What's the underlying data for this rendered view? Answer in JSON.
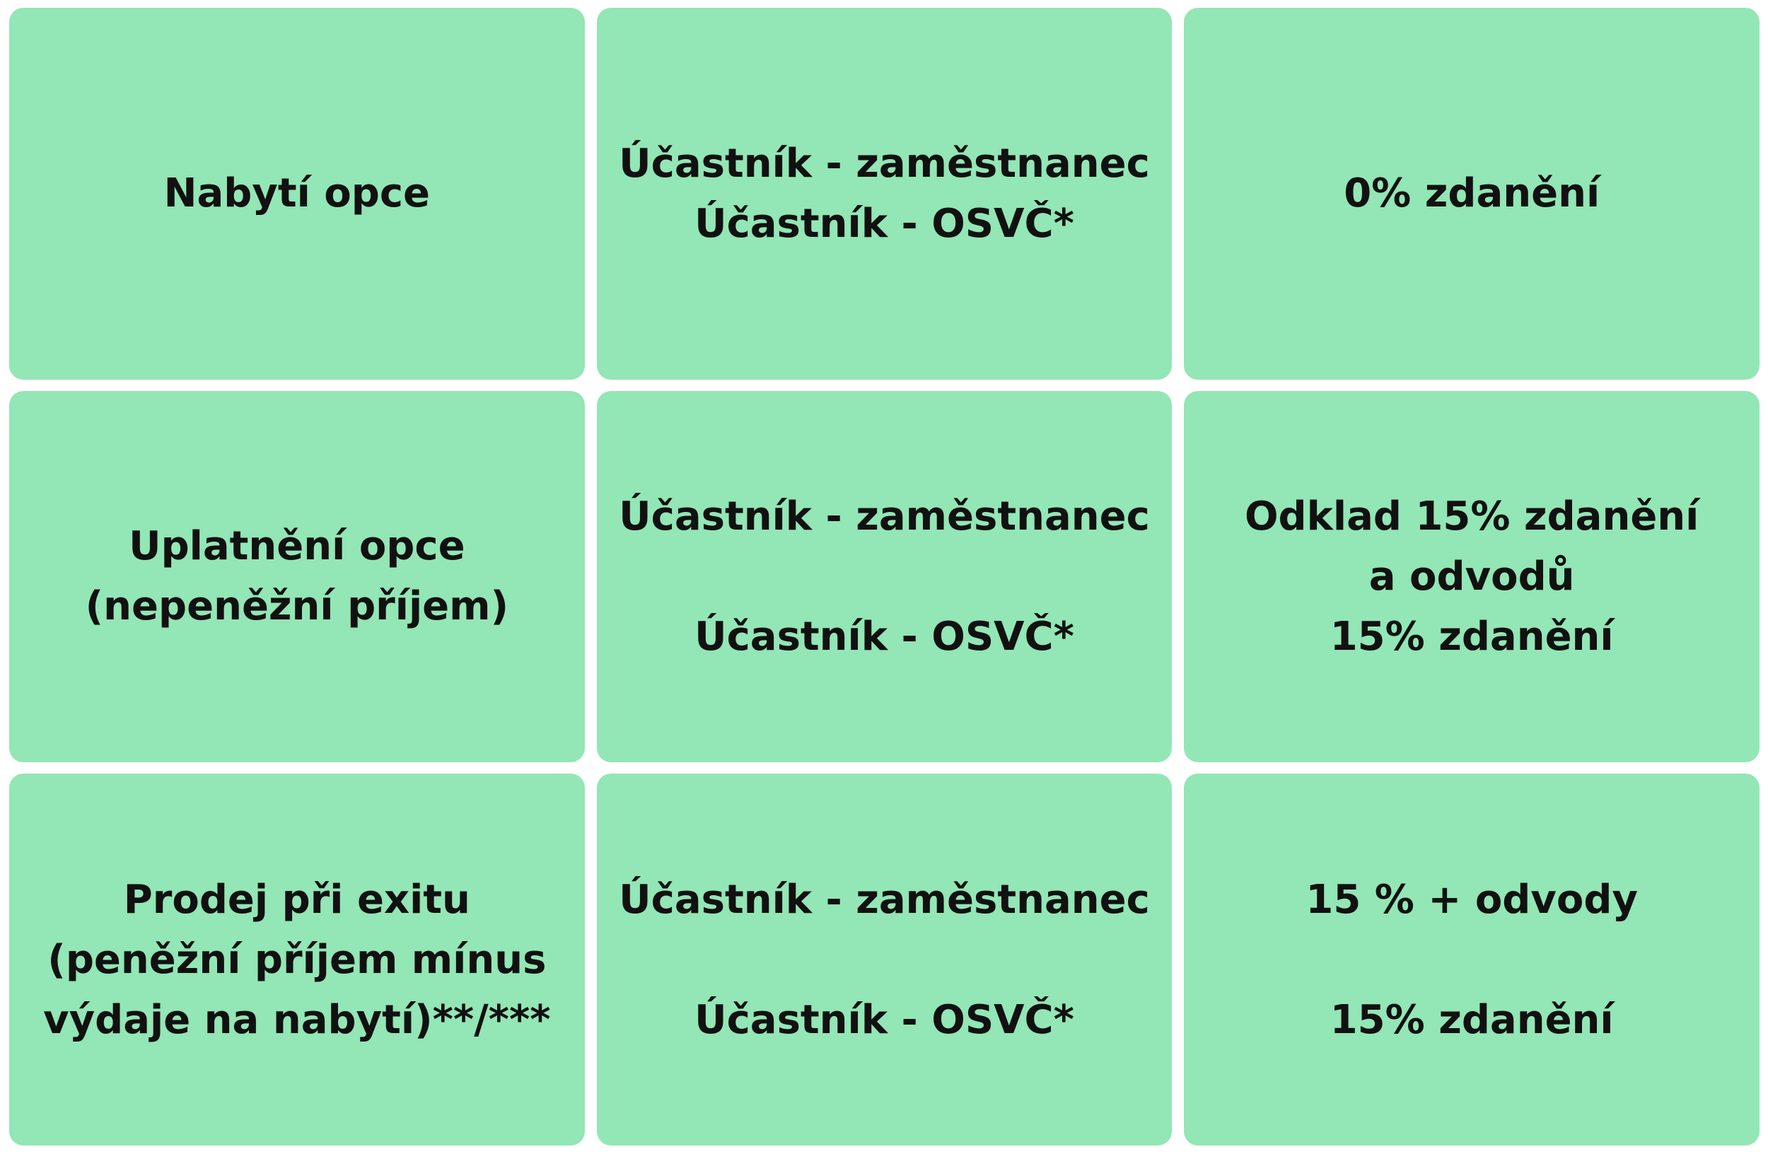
{
  "table": {
    "rows": [
      [
        [
          [
            "Nabytí opce"
          ]
        ],
        [
          [
            "Účastník - zaměstnanec",
            "Účastník - OSVČ*"
          ]
        ],
        [
          [
            "0% zdanění"
          ]
        ]
      ],
      [
        [
          [
            "Uplatnění opce",
            "(nepeněžní příjem)"
          ]
        ],
        [
          [
            "Účastník - zaměstnanec"
          ],
          [
            "Účastník - OSVČ*"
          ]
        ],
        [
          [
            "Odklad 15% zdanění",
            "a odvodů",
            "15% zdanění"
          ]
        ]
      ],
      [
        [
          [
            "Prodej při exitu",
            "(peněžní příjem mínus",
            "výdaje na nabytí)**/***"
          ]
        ],
        [
          [
            "Účastník - zaměstnanec"
          ],
          [
            "Účastník - OSVČ*"
          ]
        ],
        [
          [
            "15 % + odvody"
          ],
          [
            "15% zdanění"
          ]
        ]
      ]
    ]
  }
}
